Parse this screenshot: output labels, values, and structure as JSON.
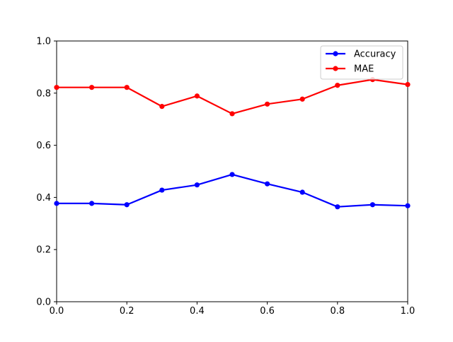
{
  "chart_data": {
    "type": "line",
    "title": "",
    "xlabel": "",
    "ylabel": "",
    "xlim": [
      0.0,
      1.0
    ],
    "ylim": [
      0.0,
      1.0
    ],
    "grid": false,
    "legend_position": "top-right",
    "x_ticks": [
      "0.0",
      "0.2",
      "0.4",
      "0.6",
      "0.8",
      "1.0"
    ],
    "y_ticks": [
      "0.0",
      "0.2",
      "0.4",
      "0.6",
      "0.8",
      "1.0"
    ],
    "x": [
      0.0,
      0.1,
      0.2,
      0.3,
      0.4,
      0.5,
      0.6,
      0.7,
      0.8,
      0.9,
      1.0
    ],
    "series": [
      {
        "name": "Accuracy",
        "color": "#0000ff",
        "values": [
          0.377,
          0.377,
          0.372,
          0.428,
          0.448,
          0.488,
          0.452,
          0.42,
          0.364,
          0.372,
          0.368
        ]
      },
      {
        "name": "MAE",
        "color": "#ff0000",
        "values": [
          0.822,
          0.822,
          0.822,
          0.749,
          0.789,
          0.721,
          0.758,
          0.777,
          0.83,
          0.852,
          0.833
        ]
      }
    ]
  }
}
